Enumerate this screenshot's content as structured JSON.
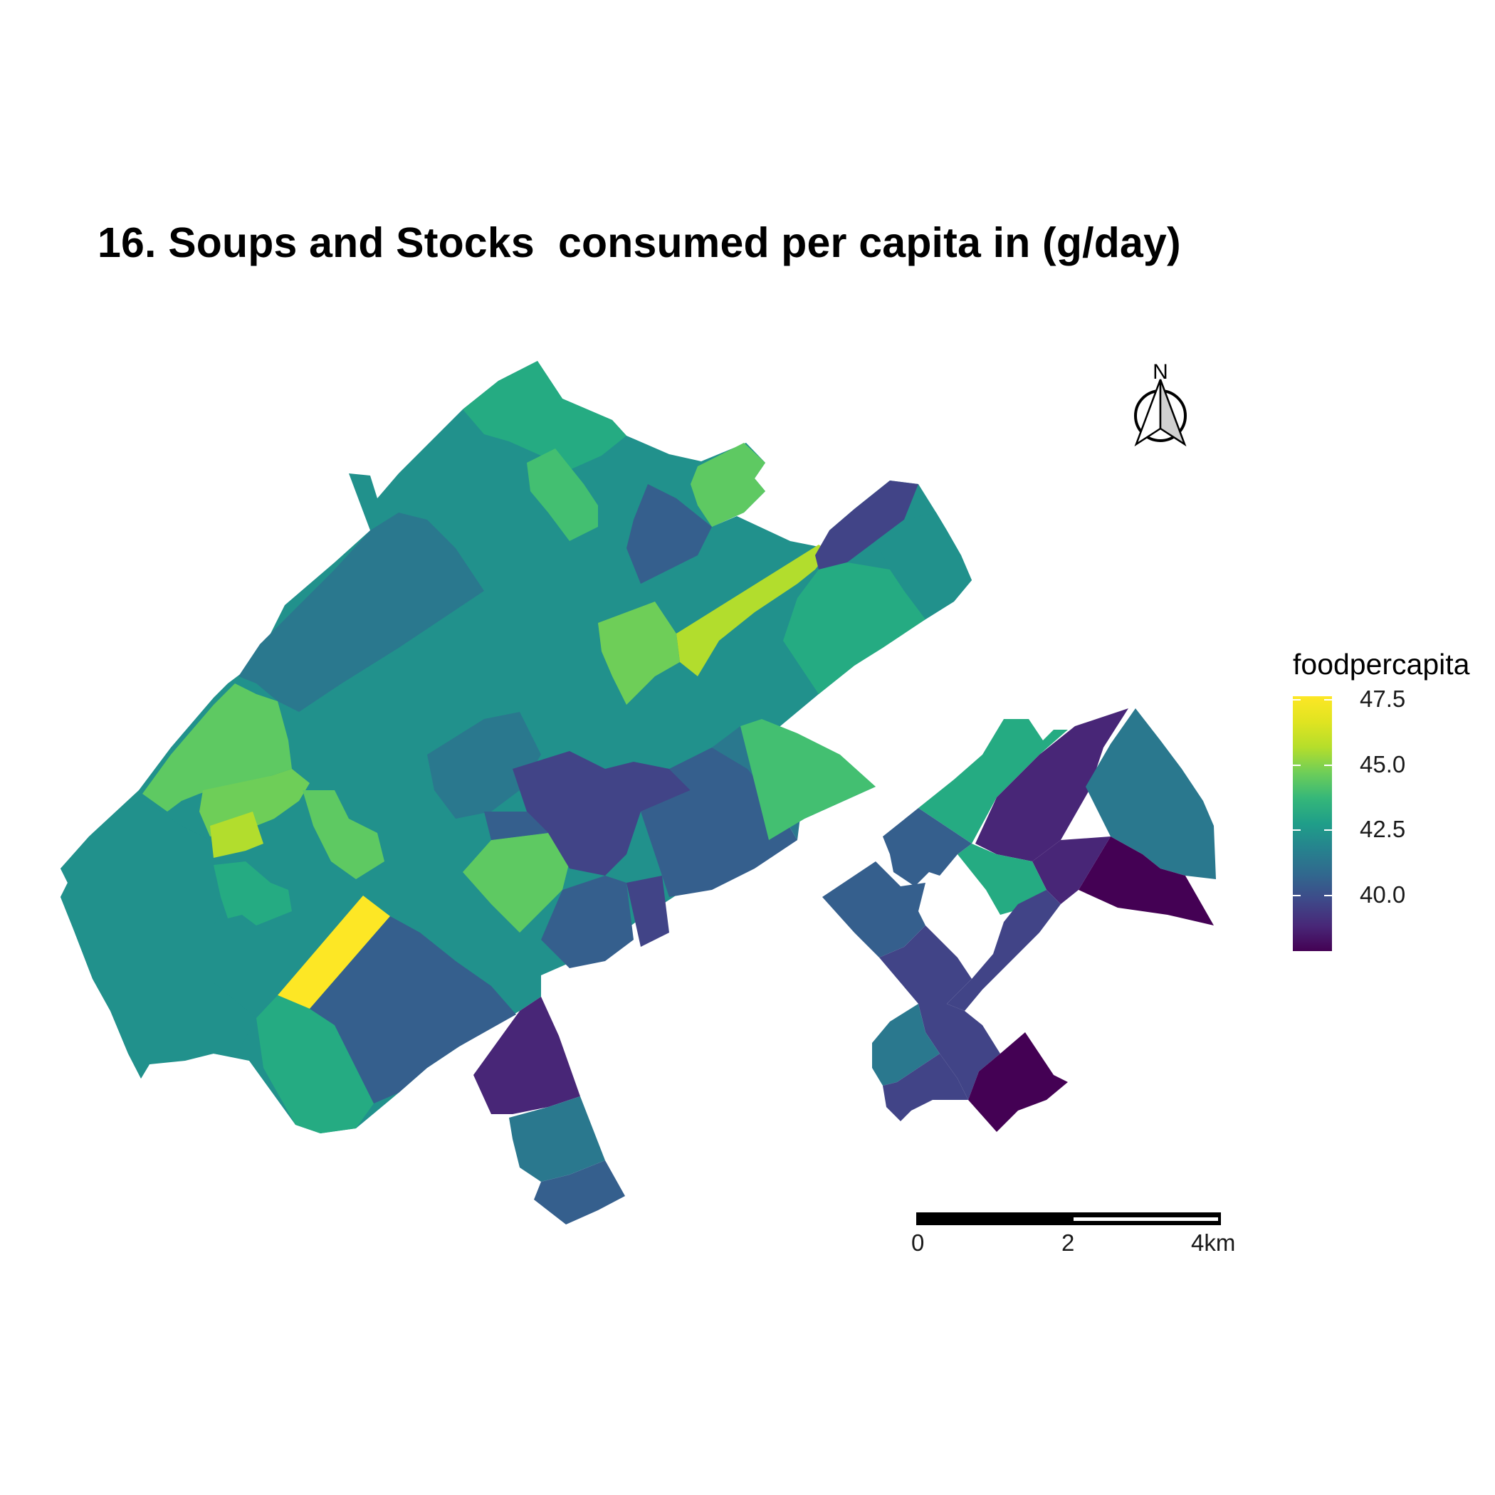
{
  "title": "16. Soups and Stocks  consumed per capita in (g/day)",
  "legend": {
    "title": "foodpercapita",
    "ticks": [
      "47.5",
      "45.0",
      "42.5",
      "40.0"
    ],
    "colormap": "viridis",
    "range": [
      38.0,
      48.0
    ]
  },
  "north_arrow": {
    "label": "N"
  },
  "scale_bar": {
    "labels": [
      "0",
      "2",
      "4km"
    ],
    "segments": [
      "black",
      "white"
    ]
  },
  "palette": {
    "yellow": "#fde725",
    "lime": "#b2dd2d",
    "green_light": "#5ec962",
    "green": "#43bf71",
    "teal_green": "#25ab82",
    "teal": "#21918c",
    "teal_blue": "#2a788e",
    "blue": "#355f8d",
    "indigo": "#414487",
    "purple": "#482677",
    "dark_purple": "#440154"
  }
}
